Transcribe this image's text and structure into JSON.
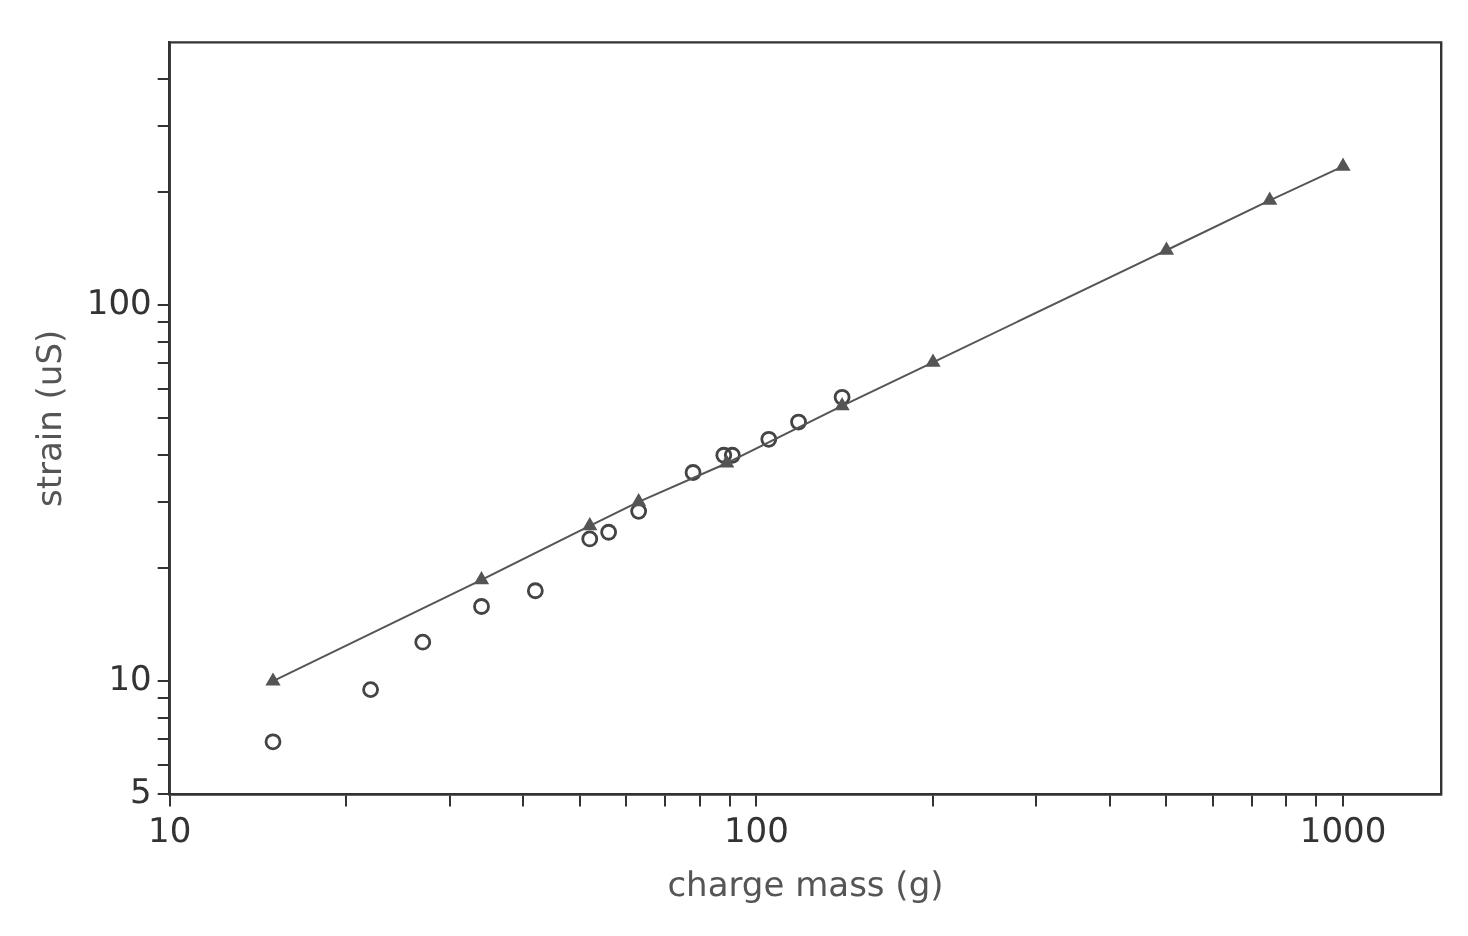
{
  "chart_data": {
    "type": "scatter",
    "xlabel": "charge mass (g)",
    "ylabel": "strain (uS)",
    "log": "xy",
    "grid": false,
    "legend": false,
    "xlim": [
      10,
      1470
    ],
    "ylim": [
      5,
      500
    ],
    "xticks": [
      10,
      {
        "value": 20,
        "label": null
      },
      {
        "value": 30,
        "label": null
      },
      {
        "value": 40,
        "label": null
      },
      {
        "value": 50,
        "label": null
      },
      {
        "value": 60,
        "label": null
      },
      {
        "value": 70,
        "label": null
      },
      {
        "value": 80,
        "label": null
      },
      {
        "value": 90,
        "label": null
      },
      100,
      {
        "value": 200,
        "label": null
      },
      {
        "value": 300,
        "label": null
      },
      {
        "value": 400,
        "label": null
      },
      {
        "value": 500,
        "label": null
      },
      {
        "value": 600,
        "label": null
      },
      {
        "value": 700,
        "label": null
      },
      {
        "value": 800,
        "label": null
      },
      {
        "value": 900,
        "label": null
      },
      1000
    ],
    "yticks": [
      5,
      {
        "value": 6,
        "label": null
      },
      {
        "value": 7,
        "label": null
      },
      {
        "value": 8,
        "label": null
      },
      {
        "value": 9,
        "label": null
      },
      10,
      {
        "value": 20,
        "label": null
      },
      {
        "value": 30,
        "label": null
      },
      {
        "value": 40,
        "label": null
      },
      {
        "value": 50,
        "label": null
      },
      {
        "value": 60,
        "label": null
      },
      {
        "value": 70,
        "label": null
      },
      {
        "value": 80,
        "label": null
      },
      {
        "value": 90,
        "label": null
      },
      100,
      {
        "value": 200,
        "label": null
      },
      {
        "value": 300,
        "label": null
      },
      {
        "value": 400,
        "label": null
      }
    ],
    "series": [
      {
        "type": "line",
        "color": "#555555",
        "marker": "triangle",
        "line_style": "solid",
        "x": [
          15,
          34,
          52,
          63,
          89,
          140,
          200,
          500,
          750,
          1000
        ],
        "values": [
          10,
          18.6,
          25.9,
          30,
          38,
          54,
          70.5,
          140,
          190,
          234
        ]
      },
      {
        "color": "#444444",
        "marker": "circle",
        "x": [
          15,
          22,
          27,
          34,
          42,
          52,
          56,
          63,
          78,
          88,
          91,
          105,
          118,
          140
        ],
        "values": [
          6.9,
          9.5,
          12.7,
          15.8,
          17.4,
          23.9,
          24.9,
          28.3,
          35.9,
          39.9,
          39.9,
          44,
          48.9,
          56.9
        ]
      }
    ]
  }
}
